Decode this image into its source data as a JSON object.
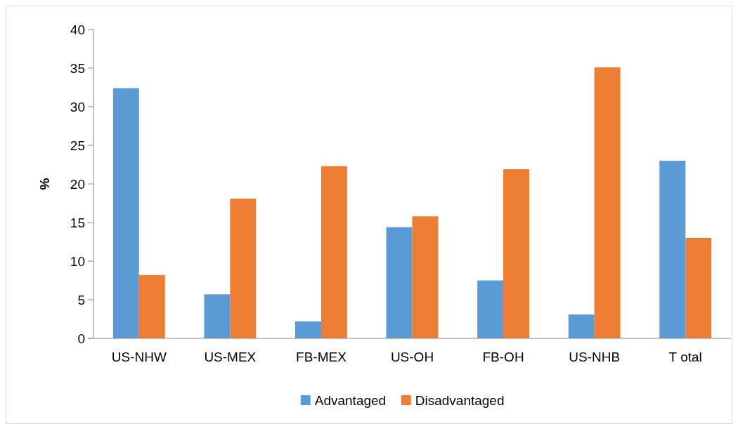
{
  "chart_data": {
    "type": "bar",
    "ylabel": "%",
    "categories": [
      "US-NHW",
      "US-MEX",
      "FB-MEX",
      "US-OH",
      "FB-OH",
      "US-NHB",
      "T otal"
    ],
    "series": [
      {
        "name": "Advantaged",
        "color": "#5b9bd5",
        "values": [
          32.4,
          5.7,
          2.2,
          14.4,
          7.5,
          3.1,
          23.0
        ]
      },
      {
        "name": "Disadvantaged",
        "color": "#ed7d31",
        "values": [
          8.2,
          18.1,
          22.3,
          15.8,
          21.9,
          35.1,
          13.0
        ]
      }
    ],
    "ylim": [
      0,
      40
    ],
    "yticks": [
      0,
      5,
      10,
      15,
      20,
      25,
      30,
      35,
      40
    ],
    "grid": false,
    "legend": "bottom"
  }
}
